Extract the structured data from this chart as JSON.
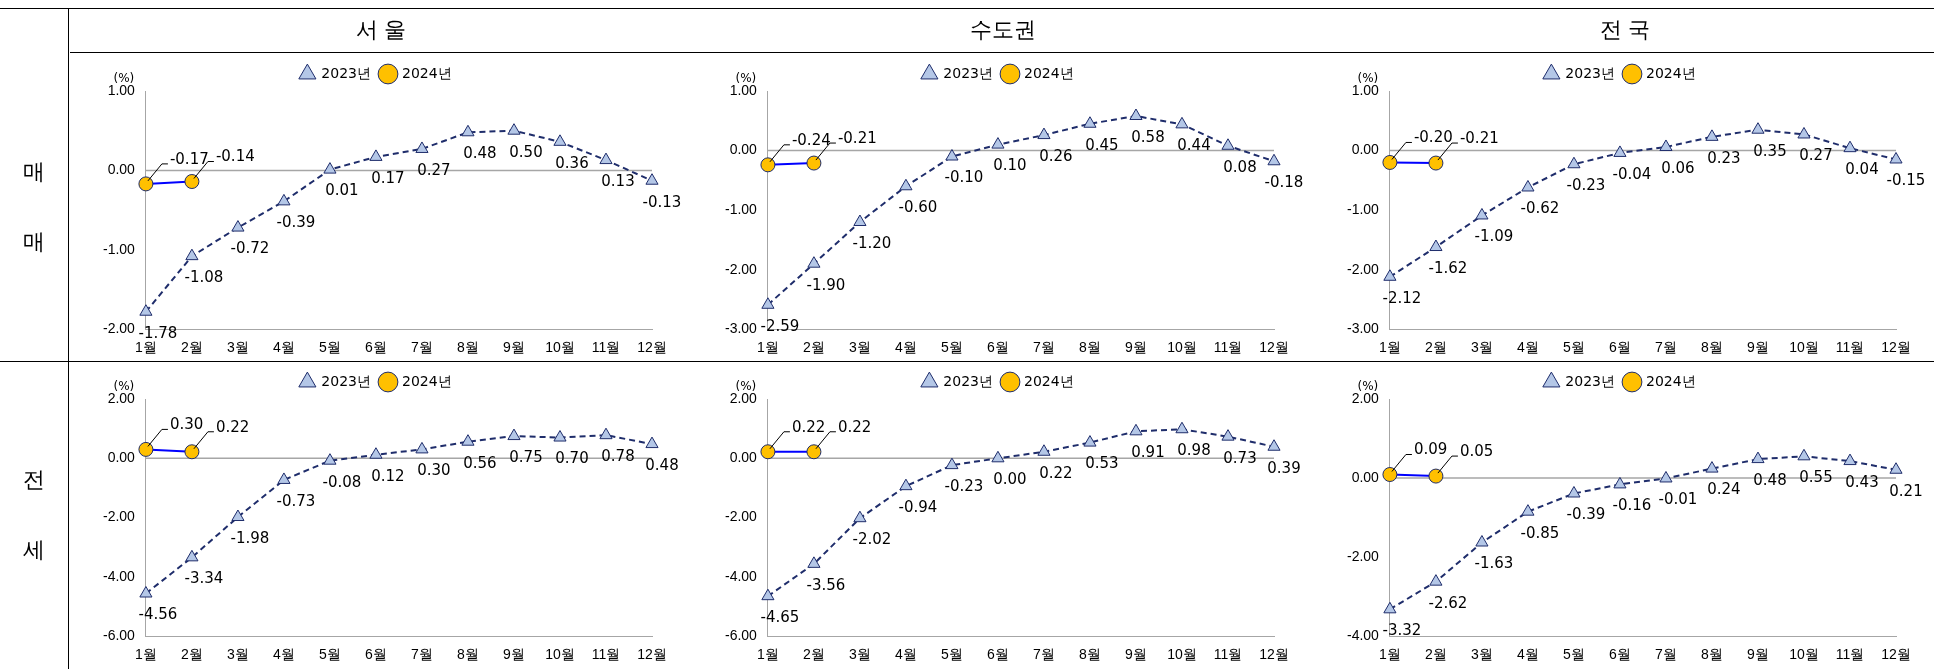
{
  "chart_data": [
    {
      "type": "line",
      "title": "서 울",
      "ylabel": "(%)",
      "annotations": [
        "매매"
      ],
      "categories": [
        "1월",
        "2월",
        "3월",
        "4월",
        "5월",
        "6월",
        "7월",
        "8월",
        "9월",
        "10월",
        "11월",
        "12월"
      ],
      "ylim": [
        -2,
        1
      ],
      "yticks": [
        {
          "value": -2,
          "label": "-2.00"
        },
        {
          "value": -1,
          "label": "-1.00"
        },
        {
          "value": 0,
          "label": "0.00"
        },
        {
          "value": 1,
          "label": "1.00"
        }
      ],
      "grid": false,
      "legend": "top",
      "ref_lines": [
        {
          "axis": "y",
          "value": 0,
          "color": "#a6a6a6"
        }
      ],
      "series": [
        {
          "name": "2023년",
          "color": "#1f2d6b",
          "colors": [
            "#b4c7e7",
            "#b4c7e7",
            "#b4c7e7",
            "#b4c7e7",
            "#b4c7e7",
            "#b4c7e7",
            "#b4c7e7",
            "#b4c7e7",
            "#b4c7e7",
            "#b4c7e7",
            "#b4c7e7",
            "#b4c7e7"
          ],
          "marker": "triangle",
          "line_style": "dashed",
          "values": [
            -1.78,
            -1.08,
            -0.72,
            -0.39,
            0.01,
            0.17,
            0.27,
            0.48,
            0.5,
            0.36,
            0.13,
            -0.13
          ],
          "value_labels": [
            "-1.78",
            "-1.08",
            "-0.72",
            "-0.39",
            "0.01",
            "0.17",
            "0.27",
            "0.48",
            "0.50",
            "0.36",
            "0.13",
            "-0.13"
          ]
        },
        {
          "name": "2024년",
          "color": "#0000ff",
          "colors": [
            "#ffc000",
            "#ffc000",
            null,
            null,
            null,
            null,
            null,
            null,
            null,
            null,
            null,
            null
          ],
          "marker": "circle",
          "line_style": "solid",
          "values": [
            -0.17,
            -0.14,
            null,
            null,
            null,
            null,
            null,
            null,
            null,
            null,
            null,
            null
          ],
          "value_labels": [
            "-0.17",
            "-0.14",
            null,
            null,
            null,
            null,
            null,
            null,
            null,
            null,
            null,
            null
          ]
        }
      ]
    },
    {
      "type": "line",
      "title": "수도권",
      "ylabel": "(%)",
      "categories": [
        "1월",
        "2월",
        "3월",
        "4월",
        "5월",
        "6월",
        "7월",
        "8월",
        "9월",
        "10월",
        "11월",
        "12월"
      ],
      "ylim": [
        -3,
        1
      ],
      "yticks": [
        {
          "value": -3,
          "label": "-3.00"
        },
        {
          "value": -2,
          "label": "-2.00"
        },
        {
          "value": -1,
          "label": "-1.00"
        },
        {
          "value": 0,
          "label": "0.00"
        },
        {
          "value": 1,
          "label": "1.00"
        }
      ],
      "grid": false,
      "legend": "top",
      "ref_lines": [
        {
          "axis": "y",
          "value": 0,
          "color": "#a6a6a6"
        }
      ],
      "series": [
        {
          "name": "2023년",
          "color": "#1f2d6b",
          "colors": [
            "#b4c7e7",
            "#b4c7e7",
            "#b4c7e7",
            "#b4c7e7",
            "#b4c7e7",
            "#b4c7e7",
            "#b4c7e7",
            "#b4c7e7",
            "#b4c7e7",
            "#b4c7e7",
            "#b4c7e7",
            "#b4c7e7"
          ],
          "marker": "triangle",
          "line_style": "dashed",
          "values": [
            -2.59,
            -1.9,
            -1.2,
            -0.6,
            -0.1,
            0.1,
            0.26,
            0.45,
            0.58,
            0.44,
            0.08,
            -0.18
          ],
          "value_labels": [
            "-2.59",
            "-1.90",
            "-1.20",
            "-0.60",
            "-0.10",
            "0.10",
            "0.26",
            "0.45",
            "0.58",
            "0.44",
            "0.08",
            "-0.18"
          ]
        },
        {
          "name": "2024년",
          "color": "#0000ff",
          "colors": [
            "#ffc000",
            "#ffc000",
            null,
            null,
            null,
            null,
            null,
            null,
            null,
            null,
            null,
            null
          ],
          "marker": "circle",
          "line_style": "solid",
          "values": [
            -0.24,
            -0.21,
            null,
            null,
            null,
            null,
            null,
            null,
            null,
            null,
            null,
            null
          ],
          "value_labels": [
            "-0.24",
            "-0.21",
            null,
            null,
            null,
            null,
            null,
            null,
            null,
            null,
            null,
            null
          ]
        }
      ]
    },
    {
      "type": "line",
      "title": "전 국",
      "ylabel": "(%)",
      "categories": [
        "1월",
        "2월",
        "3월",
        "4월",
        "5월",
        "6월",
        "7월",
        "8월",
        "9월",
        "10월",
        "11월",
        "12월"
      ],
      "ylim": [
        -3,
        1
      ],
      "yticks": [
        {
          "value": -3,
          "label": "-3.00"
        },
        {
          "value": -2,
          "label": "-2.00"
        },
        {
          "value": -1,
          "label": "-1.00"
        },
        {
          "value": 0,
          "label": "0.00"
        },
        {
          "value": 1,
          "label": "1.00"
        }
      ],
      "grid": false,
      "legend": "top",
      "ref_lines": [
        {
          "axis": "y",
          "value": 0,
          "color": "#a6a6a6"
        }
      ],
      "series": [
        {
          "name": "2023년",
          "color": "#1f2d6b",
          "colors": [
            "#b4c7e7",
            "#b4c7e7",
            "#b4c7e7",
            "#b4c7e7",
            "#b4c7e7",
            "#b4c7e7",
            "#b4c7e7",
            "#b4c7e7",
            "#b4c7e7",
            "#b4c7e7",
            "#b4c7e7",
            "#b4c7e7"
          ],
          "marker": "triangle",
          "line_style": "dashed",
          "values": [
            -2.12,
            -1.62,
            -1.09,
            -0.62,
            -0.23,
            -0.04,
            0.06,
            0.23,
            0.35,
            0.27,
            0.04,
            -0.15
          ],
          "value_labels": [
            "-2.12",
            "-1.62",
            "-1.09",
            "-0.62",
            "-0.23",
            "-0.04",
            "0.06",
            "0.23",
            "0.35",
            "0.27",
            "0.04",
            "-0.15"
          ]
        },
        {
          "name": "2024년",
          "color": "#0000ff",
          "colors": [
            "#ffc000",
            "#ffc000",
            null,
            null,
            null,
            null,
            null,
            null,
            null,
            null,
            null,
            null
          ],
          "marker": "circle",
          "line_style": "solid",
          "values": [
            -0.2,
            -0.21,
            null,
            null,
            null,
            null,
            null,
            null,
            null,
            null,
            null,
            null
          ],
          "value_labels": [
            "-0.20",
            "-0.21",
            null,
            null,
            null,
            null,
            null,
            null,
            null,
            null,
            null,
            null
          ]
        }
      ]
    },
    {
      "type": "line",
      "ylabel": "(%)",
      "annotations": [
        "전세"
      ],
      "categories": [
        "1월",
        "2월",
        "3월",
        "4월",
        "5월",
        "6월",
        "7월",
        "8월",
        "9월",
        "10월",
        "11월",
        "12월"
      ],
      "ylim": [
        -6,
        2
      ],
      "yticks": [
        {
          "value": -6,
          "label": "-6.00"
        },
        {
          "value": -4,
          "label": "-4.00"
        },
        {
          "value": -2,
          "label": "-2.00"
        },
        {
          "value": 0,
          "label": "0.00"
        },
        {
          "value": 2,
          "label": "2.00"
        }
      ],
      "grid": false,
      "legend": "top",
      "ref_lines": [
        {
          "axis": "y",
          "value": 0,
          "color": "#a6a6a6"
        }
      ],
      "series": [
        {
          "name": "2023년",
          "color": "#1f2d6b",
          "colors": [
            "#b4c7e7",
            "#b4c7e7",
            "#b4c7e7",
            "#b4c7e7",
            "#b4c7e7",
            "#b4c7e7",
            "#b4c7e7",
            "#b4c7e7",
            "#b4c7e7",
            "#b4c7e7",
            "#b4c7e7",
            "#b4c7e7"
          ],
          "marker": "triangle",
          "line_style": "dashed",
          "values": [
            -4.56,
            -3.34,
            -1.98,
            -0.73,
            -0.08,
            0.12,
            0.3,
            0.56,
            0.75,
            0.7,
            0.78,
            0.48
          ],
          "value_labels": [
            "-4.56",
            "-3.34",
            "-1.98",
            "-0.73",
            "-0.08",
            "0.12",
            "0.30",
            "0.56",
            "0.75",
            "0.70",
            "0.78",
            "0.48"
          ]
        },
        {
          "name": "2024년",
          "color": "#0000ff",
          "colors": [
            "#ffc000",
            "#ffc000",
            null,
            null,
            null,
            null,
            null,
            null,
            null,
            null,
            null,
            null
          ],
          "marker": "circle",
          "line_style": "solid",
          "values": [
            0.3,
            0.22,
            null,
            null,
            null,
            null,
            null,
            null,
            null,
            null,
            null,
            null
          ],
          "value_labels": [
            "0.30",
            "0.22",
            null,
            null,
            null,
            null,
            null,
            null,
            null,
            null,
            null,
            null
          ]
        }
      ]
    },
    {
      "type": "line",
      "ylabel": "(%)",
      "categories": [
        "1월",
        "2월",
        "3월",
        "4월",
        "5월",
        "6월",
        "7월",
        "8월",
        "9월",
        "10월",
        "11월",
        "12월"
      ],
      "ylim": [
        -6,
        2
      ],
      "yticks": [
        {
          "value": -6,
          "label": "-6.00"
        },
        {
          "value": -4,
          "label": "-4.00"
        },
        {
          "value": -2,
          "label": "-2.00"
        },
        {
          "value": 0,
          "label": "0.00"
        },
        {
          "value": 2,
          "label": "2.00"
        }
      ],
      "grid": false,
      "legend": "top",
      "ref_lines": [
        {
          "axis": "y",
          "value": 0,
          "color": "#a6a6a6"
        }
      ],
      "series": [
        {
          "name": "2023년",
          "color": "#1f2d6b",
          "colors": [
            "#b4c7e7",
            "#b4c7e7",
            "#b4c7e7",
            "#b4c7e7",
            "#b4c7e7",
            "#b4c7e7",
            "#b4c7e7",
            "#b4c7e7",
            "#b4c7e7",
            "#b4c7e7",
            "#b4c7e7",
            "#b4c7e7"
          ],
          "marker": "triangle",
          "line_style": "dashed",
          "values": [
            -4.65,
            -3.56,
            -2.02,
            -0.94,
            -0.23,
            0.0,
            0.22,
            0.53,
            0.91,
            0.98,
            0.73,
            0.39
          ],
          "value_labels": [
            "-4.65",
            "-3.56",
            "-2.02",
            "-0.94",
            "-0.23",
            "0.00",
            "0.22",
            "0.53",
            "0.91",
            "0.98",
            "0.73",
            "0.39"
          ]
        },
        {
          "name": "2024년",
          "color": "#0000ff",
          "colors": [
            "#ffc000",
            "#ffc000",
            null,
            null,
            null,
            null,
            null,
            null,
            null,
            null,
            null,
            null
          ],
          "marker": "circle",
          "line_style": "solid",
          "values": [
            0.22,
            0.22,
            null,
            null,
            null,
            null,
            null,
            null,
            null,
            null,
            null,
            null
          ],
          "value_labels": [
            "0.22",
            "0.22",
            null,
            null,
            null,
            null,
            null,
            null,
            null,
            null,
            null,
            null
          ]
        }
      ]
    },
    {
      "type": "line",
      "ylabel": "(%)",
      "categories": [
        "1월",
        "2월",
        "3월",
        "4월",
        "5월",
        "6월",
        "7월",
        "8월",
        "9월",
        "10월",
        "11월",
        "12월"
      ],
      "ylim": [
        -4,
        2
      ],
      "yticks": [
        {
          "value": -4,
          "label": "-4.00"
        },
        {
          "value": -2,
          "label": "-2.00"
        },
        {
          "value": 0,
          "label": "0.00"
        },
        {
          "value": 2,
          "label": "2.00"
        }
      ],
      "grid": false,
      "legend": "top",
      "ref_lines": [
        {
          "axis": "y",
          "value": 0,
          "color": "#a6a6a6"
        }
      ],
      "series": [
        {
          "name": "2023년",
          "color": "#1f2d6b",
          "colors": [
            "#b4c7e7",
            "#b4c7e7",
            "#b4c7e7",
            "#b4c7e7",
            "#b4c7e7",
            "#b4c7e7",
            "#b4c7e7",
            "#b4c7e7",
            "#b4c7e7",
            "#b4c7e7",
            "#b4c7e7",
            "#b4c7e7"
          ],
          "marker": "triangle",
          "line_style": "dashed",
          "values": [
            -3.32,
            -2.62,
            -1.63,
            -0.85,
            -0.39,
            -0.16,
            -0.01,
            0.24,
            0.48,
            0.55,
            0.43,
            0.21
          ],
          "value_labels": [
            "-3.32",
            "-2.62",
            "-1.63",
            "-0.85",
            "-0.39",
            "-0.16",
            "-0.01",
            "0.24",
            "0.48",
            "0.55",
            "0.43",
            "0.21"
          ]
        },
        {
          "name": "2024년",
          "color": "#0000ff",
          "colors": [
            "#ffc000",
            "#ffc000",
            null,
            null,
            null,
            null,
            null,
            null,
            null,
            null,
            null,
            null
          ],
          "marker": "circle",
          "line_style": "solid",
          "values": [
            0.09,
            0.05,
            null,
            null,
            null,
            null,
            null,
            null,
            null,
            null,
            null,
            null
          ],
          "value_labels": [
            "0.09",
            "0.05",
            null,
            null,
            null,
            null,
            null,
            null,
            null,
            null,
            null,
            null
          ]
        }
      ]
    }
  ]
}
